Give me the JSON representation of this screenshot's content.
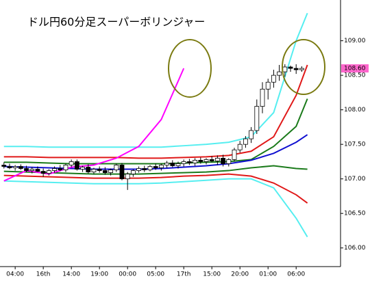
{
  "chart_data": {
    "type": "candlestick",
    "title": "ドル円60分足スーパーボリンジャー",
    "xlim": [
      -2.7,
      57.9
    ],
    "ylim": [
      105.73,
      109.59
    ],
    "xticks": [
      {
        "value": 0,
        "label": "04:00"
      },
      {
        "value": 5,
        "label": "16th"
      },
      {
        "value": 10,
        "label": "14:00"
      },
      {
        "value": 15,
        "label": "19:00"
      },
      {
        "value": 20,
        "label": "00:00"
      },
      {
        "value": 25,
        "label": "05:00"
      },
      {
        "value": 30,
        "label": "17th"
      },
      {
        "value": 35,
        "label": "15:00"
      },
      {
        "value": 40,
        "label": "20:00"
      },
      {
        "value": 45,
        "label": "01:00"
      },
      {
        "value": 50,
        "label": "06:00"
      }
    ],
    "yticks": [
      {
        "value": 106,
        "label": "106.00"
      },
      {
        "value": 106.5,
        "label": "106.50"
      },
      {
        "value": 107,
        "label": "107.00"
      },
      {
        "value": 107.5,
        "label": "107.50"
      },
      {
        "value": 108,
        "label": "108.00"
      },
      {
        "value": 108.5,
        "label": "108.50"
      },
      {
        "value": 109,
        "label": "109.00"
      }
    ],
    "last_price": {
      "value": 108.6,
      "label": "108.60",
      "color": "#ff66cc"
    },
    "candles": {
      "up_color": "#ffffff",
      "down_color": "#000000",
      "x": [
        -2,
        -1,
        0,
        1,
        2,
        3,
        4,
        5,
        6,
        7,
        8,
        9,
        10,
        11,
        12,
        13,
        14,
        15,
        16,
        17,
        18,
        19,
        20,
        21,
        22,
        23,
        24,
        25,
        26,
        27,
        28,
        29,
        30,
        31,
        32,
        33,
        34,
        35,
        36,
        37,
        38,
        39,
        40,
        41,
        42,
        43,
        44,
        45,
        46,
        47,
        48,
        49,
        50,
        51
      ],
      "ohlc": [
        [
          107.2,
          107.24,
          107.15,
          107.18
        ],
        [
          107.18,
          107.22,
          107.14,
          107.16
        ],
        [
          107.16,
          107.2,
          107.12,
          107.18
        ],
        [
          107.18,
          107.21,
          107.13,
          107.15
        ],
        [
          107.15,
          107.19,
          107.1,
          107.12
        ],
        [
          107.12,
          107.17,
          107.08,
          107.14
        ],
        [
          107.14,
          107.18,
          107.1,
          107.11
        ],
        [
          107.11,
          107.15,
          107.03,
          107.08
        ],
        [
          107.08,
          107.14,
          107.05,
          107.12
        ],
        [
          107.12,
          107.18,
          107.09,
          107.15
        ],
        [
          107.15,
          107.2,
          107.11,
          107.13
        ],
        [
          107.13,
          107.22,
          107.1,
          107.2
        ],
        [
          107.2,
          107.28,
          107.17,
          107.25
        ],
        [
          107.25,
          107.28,
          107.12,
          107.14
        ],
        [
          107.14,
          107.19,
          107.1,
          107.17
        ],
        [
          107.17,
          107.21,
          107.08,
          107.1
        ],
        [
          107.1,
          107.16,
          107.07,
          107.14
        ],
        [
          107.14,
          107.18,
          107.09,
          107.12
        ],
        [
          107.12,
          107.17,
          107.06,
          107.09
        ],
        [
          107.09,
          107.15,
          107.05,
          107.13
        ],
        [
          107.13,
          107.22,
          107.1,
          107.2
        ],
        [
          107.2,
          107.23,
          106.98,
          107.0
        ],
        [
          107.0,
          107.1,
          106.84,
          107.07
        ],
        [
          107.07,
          107.14,
          107.03,
          107.12
        ],
        [
          107.12,
          107.18,
          107.09,
          107.15
        ],
        [
          107.15,
          107.19,
          107.1,
          107.13
        ],
        [
          107.13,
          107.2,
          107.11,
          107.18
        ],
        [
          107.18,
          107.22,
          107.13,
          107.16
        ],
        [
          107.16,
          107.22,
          107.12,
          107.2
        ],
        [
          107.2,
          107.26,
          107.16,
          107.23
        ],
        [
          107.23,
          107.27,
          107.17,
          107.19
        ],
        [
          107.19,
          107.25,
          107.15,
          107.22
        ],
        [
          107.22,
          107.28,
          107.18,
          107.25
        ],
        [
          107.25,
          107.29,
          107.2,
          107.23
        ],
        [
          107.23,
          107.3,
          107.19,
          107.27
        ],
        [
          107.27,
          107.31,
          107.22,
          107.25
        ],
        [
          107.25,
          107.3,
          107.21,
          107.28
        ],
        [
          107.28,
          107.33,
          107.24,
          107.26
        ],
        [
          107.26,
          107.34,
          107.2,
          107.3
        ],
        [
          107.3,
          107.35,
          107.18,
          107.22
        ],
        [
          107.22,
          107.3,
          107.18,
          107.28
        ],
        [
          107.28,
          107.45,
          107.25,
          107.42
        ],
        [
          107.42,
          107.55,
          107.38,
          107.5
        ],
        [
          107.5,
          107.62,
          107.45,
          107.58
        ],
        [
          107.58,
          107.75,
          107.52,
          107.7
        ],
        [
          107.7,
          108.15,
          107.65,
          108.05
        ],
        [
          108.05,
          108.4,
          107.95,
          108.3
        ],
        [
          108.3,
          108.45,
          108.15,
          108.4
        ],
        [
          108.4,
          108.58,
          108.32,
          108.5
        ],
        [
          108.5,
          108.65,
          108.42,
          108.55
        ],
        [
          108.55,
          108.66,
          108.48,
          108.62
        ],
        [
          108.62,
          108.64,
          108.55,
          108.6
        ],
        [
          108.6,
          108.66,
          108.52,
          108.58
        ],
        [
          108.58,
          108.63,
          108.55,
          108.6
        ]
      ]
    },
    "x": [
      -2,
      2,
      6,
      10,
      14,
      18,
      22,
      26,
      30,
      34,
      38,
      42,
      46,
      50,
      52
    ],
    "series": [
      {
        "color": "#55eef0",
        "values": [
          107.47,
          107.47,
          107.46,
          107.46,
          107.46,
          107.46,
          107.46,
          107.46,
          107.48,
          107.5,
          107.53,
          107.61,
          107.96,
          109.0,
          109.4
        ]
      },
      {
        "color": "#e01818",
        "values": [
          107.32,
          107.32,
          107.31,
          107.31,
          107.31,
          107.31,
          107.3,
          107.3,
          107.31,
          107.32,
          107.34,
          107.4,
          107.61,
          108.21,
          108.65
        ]
      },
      {
        "color": "#1a7a1a",
        "values": [
          107.24,
          107.24,
          107.23,
          107.22,
          107.22,
          107.22,
          107.22,
          107.22,
          107.23,
          107.24,
          107.25,
          107.28,
          107.47,
          107.76,
          108.16
        ]
      },
      {
        "color": "#1010d0",
        "values": [
          107.18,
          107.17,
          107.16,
          107.15,
          107.14,
          107.14,
          107.14,
          107.15,
          107.17,
          107.19,
          107.22,
          107.27,
          107.37,
          107.53,
          107.64
        ]
      },
      {
        "color": "#1a7a1a",
        "values": [
          107.11,
          107.1,
          107.09,
          107.08,
          107.07,
          107.07,
          107.07,
          107.08,
          107.09,
          107.1,
          107.12,
          107.16,
          107.19,
          107.15,
          107.14
        ]
      },
      {
        "color": "#e01818",
        "values": [
          107.05,
          107.04,
          107.03,
          107.02,
          107.01,
          107.01,
          107.01,
          107.02,
          107.04,
          107.05,
          107.07,
          107.04,
          106.94,
          106.77,
          106.65
        ]
      },
      {
        "color": "#55eef0",
        "values": [
          106.97,
          106.96,
          106.95,
          106.94,
          106.93,
          106.93,
          106.93,
          106.94,
          106.96,
          106.98,
          107.0,
          107.0,
          106.87,
          106.43,
          106.16
        ]
      },
      {
        "color": "#ff00ff",
        "values": [
          106.97,
          107.12,
          107.07,
          107.17,
          107.2,
          107.3,
          107.47,
          107.86,
          108.6,
          null,
          null,
          null,
          null,
          null,
          null
        ]
      }
    ]
  }
}
